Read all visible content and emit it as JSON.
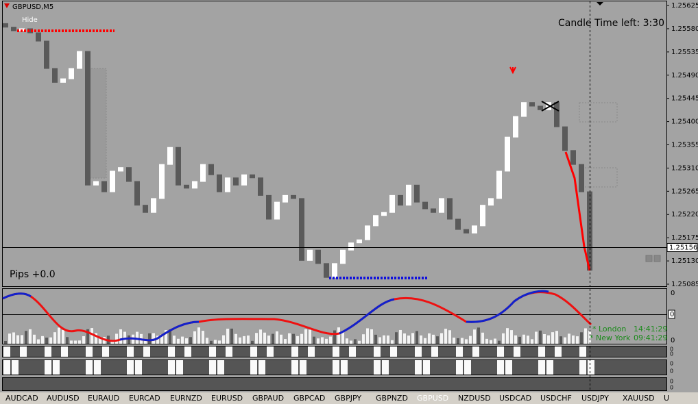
{
  "window": {
    "symbol": "GBPUSD,M5",
    "hide": "Hide",
    "candle_timer": "Candle Time left: 3:30",
    "pips": "Pips +0.0",
    "sessions": [
      {
        "name": "* London",
        "time": "14:41:29"
      },
      {
        "name": "* New York",
        "time": "09:41:29"
      }
    ],
    "indicator_labels": [
      "0",
      "0",
      "0",
      "0",
      "0",
      "0",
      "0",
      "0",
      "0"
    ]
  },
  "chart_data": {
    "type": "candlestick",
    "open": [
      1.2559,
      1.25583,
      1.25576,
      1.2558,
      1.25572,
      1.25556,
      1.25503,
      1.25476,
      1.25483,
      1.25503,
      1.25536,
      1.25277,
      1.25284,
      1.25264,
      1.25304,
      1.25311,
      1.25284,
      1.25238,
      1.25224,
      1.25251,
      1.25317,
      1.2535,
      1.25277,
      1.25271,
      1.25284,
      1.25317,
      1.25297,
      1.25264,
      1.25291,
      1.25277,
      1.25297,
      1.25291,
      1.25257,
      1.25211,
      1.25244,
      1.25257,
      1.25251,
      1.25131,
      1.25151,
      1.25125,
      1.25098,
      1.25125,
      1.25151,
      1.25165,
      1.25171,
      1.25198,
      1.25218,
      1.25224,
      1.25257,
      1.25238,
      1.25277,
      1.25244,
      1.25231,
      1.25224,
      1.25251,
      1.25211,
      1.25191,
      1.25184,
      1.25198,
      1.25238,
      1.25251,
      1.25304,
      1.2537,
      1.2541,
      1.25437,
      1.2543,
      1.25423,
      1.25437,
      1.2539,
      1.25344,
      1.25317,
      1.25264
    ],
    "close": [
      1.25583,
      1.25576,
      1.2558,
      1.25572,
      1.25556,
      1.25503,
      1.25476,
      1.25483,
      1.25503,
      1.25536,
      1.25277,
      1.25284,
      1.25264,
      1.25304,
      1.25311,
      1.25284,
      1.25238,
      1.25224,
      1.25251,
      1.25317,
      1.2535,
      1.25277,
      1.25271,
      1.25284,
      1.25317,
      1.25297,
      1.25264,
      1.25291,
      1.25277,
      1.25297,
      1.25291,
      1.25257,
      1.25211,
      1.25244,
      1.25257,
      1.25251,
      1.25131,
      1.25151,
      1.25125,
      1.25098,
      1.25125,
      1.25151,
      1.25165,
      1.25171,
      1.25198,
      1.25218,
      1.25224,
      1.25257,
      1.25238,
      1.25277,
      1.25244,
      1.25231,
      1.25224,
      1.25251,
      1.25211,
      1.25191,
      1.25184,
      1.25198,
      1.25238,
      1.25251,
      1.25304,
      1.2537,
      1.2541,
      1.25437,
      1.2543,
      1.25423,
      1.25437,
      1.2539,
      1.25344,
      1.25317,
      1.25264,
      1.25112
    ],
    "up_color": "#ffffff",
    "down_color": "#5a5a5a",
    "current_price": 1.25156,
    "ylim": [
      1.25081,
      1.25633
    ],
    "yticks": [
      1.25625,
      {
        "value": 1.2558,
        "label": "1.25580"
      },
      1.25535,
      {
        "value": 1.2549,
        "label": "1.25490"
      },
      1.25445,
      {
        "value": 1.254,
        "label": "1.25400"
      },
      1.25355,
      {
        "value": 1.2531,
        "label": "1.25310"
      },
      1.25265,
      {
        "value": 1.2522,
        "label": "1.25220"
      },
      1.25175,
      {
        "value": 1.2513,
        "label": "1.25130"
      },
      1.25085
    ]
  },
  "tabs": [
    "AUDCAD",
    "AUDUSD",
    "EURAUD",
    "EURCAD",
    "EURNZD",
    "EURUSD",
    "GBPAUD",
    "GBPCAD",
    "GBPJPY",
    "GBPNZD",
    "GBPUSD",
    "NZDUSD",
    "USDCAD",
    "USDCHF",
    "USDJPY",
    "XAUUSD",
    "U"
  ],
  "active_tab": 10
}
